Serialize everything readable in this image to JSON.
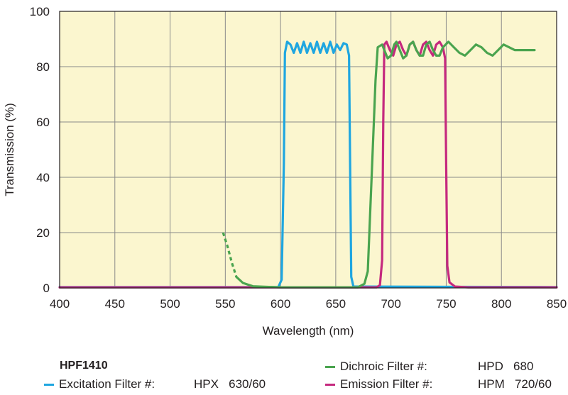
{
  "chart_data": {
    "type": "line",
    "xlabel": "Wavelength (nm)",
    "ylabel": "Transmission (%)",
    "xlim": [
      400,
      850
    ],
    "ylim": [
      0,
      100
    ],
    "x_ticks": [
      400,
      450,
      500,
      550,
      600,
      650,
      700,
      750,
      800,
      850
    ],
    "y_ticks": [
      0,
      20,
      40,
      60,
      80,
      100
    ],
    "grid": true,
    "background": "#fbf6cf",
    "series": [
      {
        "name": "Excitation Filter #: HPX 630/60",
        "color": "#1fa6e0",
        "points": [
          [
            400,
            0.3
          ],
          [
            598,
            0.3
          ],
          [
            601,
            3
          ],
          [
            603,
            45
          ],
          [
            604,
            85
          ],
          [
            606,
            89
          ],
          [
            609,
            88
          ],
          [
            612,
            85
          ],
          [
            615,
            88.5
          ],
          [
            618,
            85
          ],
          [
            621,
            89
          ],
          [
            624,
            85
          ],
          [
            627,
            88.5
          ],
          [
            630,
            85
          ],
          [
            633,
            89
          ],
          [
            636,
            85
          ],
          [
            639,
            88.5
          ],
          [
            642,
            85
          ],
          [
            645,
            89
          ],
          [
            648,
            85
          ],
          [
            651,
            88
          ],
          [
            654,
            86
          ],
          [
            657,
            88.5
          ],
          [
            660,
            88
          ],
          [
            662,
            84
          ],
          [
            663,
            45
          ],
          [
            664,
            4
          ],
          [
            666,
            0.5
          ],
          [
            850,
            0.3
          ]
        ]
      },
      {
        "name": "Dichroic Filter #: HPD 680",
        "color": "#4aa44f",
        "dashed_points": [
          [
            548,
            20
          ],
          [
            552,
            15
          ],
          [
            556,
            9
          ],
          [
            560,
            4
          ]
        ],
        "points": [
          [
            560,
            4
          ],
          [
            566,
            1.8
          ],
          [
            575,
            0.6
          ],
          [
            600,
            0.2
          ],
          [
            670,
            0.2
          ],
          [
            676,
            1.5
          ],
          [
            679,
            6
          ],
          [
            683,
            45
          ],
          [
            686,
            75
          ],
          [
            688,
            87
          ],
          [
            692,
            88
          ],
          [
            694,
            86
          ],
          [
            697,
            83
          ],
          [
            700,
            84
          ],
          [
            703,
            88
          ],
          [
            705,
            89
          ],
          [
            708,
            86
          ],
          [
            711,
            83
          ],
          [
            714,
            84
          ],
          [
            717,
            88
          ],
          [
            720,
            89
          ],
          [
            723,
            86
          ],
          [
            726,
            84
          ],
          [
            729,
            84
          ],
          [
            732,
            88
          ],
          [
            735,
            89
          ],
          [
            738,
            86
          ],
          [
            741,
            84
          ],
          [
            744,
            84
          ],
          [
            747,
            87
          ],
          [
            752,
            89
          ],
          [
            757,
            87
          ],
          [
            762,
            85
          ],
          [
            767,
            84
          ],
          [
            772,
            86
          ],
          [
            777,
            88
          ],
          [
            782,
            87
          ],
          [
            787,
            85
          ],
          [
            792,
            84
          ],
          [
            797,
            86
          ],
          [
            802,
            88
          ],
          [
            807,
            87
          ],
          [
            812,
            86
          ],
          [
            817,
            86
          ],
          [
            830,
            86
          ]
        ]
      },
      {
        "name": "Emission Filter #: HPM 720/60",
        "color": "#c5297e",
        "points": [
          [
            400,
            0.2
          ],
          [
            687,
            0.2
          ],
          [
            690,
            1
          ],
          [
            692,
            10
          ],
          [
            693,
            60
          ],
          [
            694,
            88
          ],
          [
            696,
            89
          ],
          [
            699,
            86
          ],
          [
            702,
            84
          ],
          [
            705,
            88
          ],
          [
            708,
            89
          ],
          [
            711,
            86
          ],
          [
            714,
            84
          ],
          [
            717,
            88
          ],
          [
            720,
            89
          ],
          [
            723,
            86
          ],
          [
            726,
            84
          ],
          [
            729,
            88
          ],
          [
            732,
            89
          ],
          [
            735,
            86
          ],
          [
            738,
            84
          ],
          [
            741,
            88
          ],
          [
            744,
            89
          ],
          [
            747,
            87
          ],
          [
            749,
            83
          ],
          [
            750,
            45
          ],
          [
            751,
            8
          ],
          [
            753,
            2
          ],
          [
            758,
            0.5
          ],
          [
            770,
            0.2
          ],
          [
            850,
            0.2
          ]
        ]
      }
    ]
  },
  "legend": {
    "title": "HPF1410",
    "items": [
      {
        "label": "Excitation Filter #:",
        "value": "HPX   630/60",
        "color": "#1fa6e0"
      },
      {
        "label": "Dichroic Filter #:",
        "value": "HPD   680",
        "color": "#4aa44f"
      },
      {
        "label": "Emission Filter #:",
        "value": "HPM   720/60",
        "color": "#c5297e"
      }
    ]
  }
}
